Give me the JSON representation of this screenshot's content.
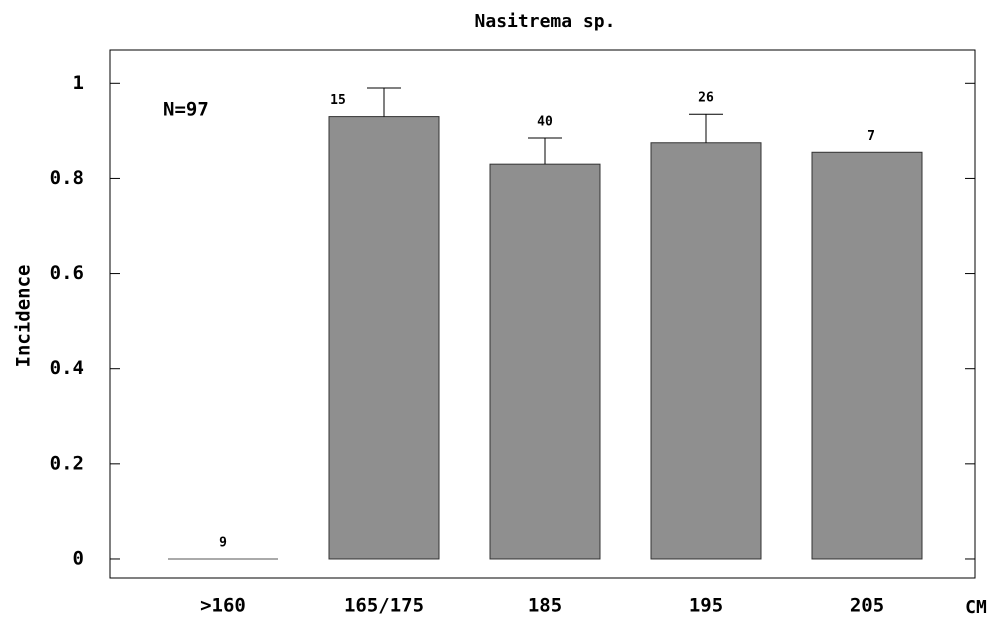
{
  "chart_data": {
    "type": "bar",
    "title": "Nasitrema sp.",
    "y_label": "Incidence",
    "x_label": "CM",
    "annotation": "N=97",
    "categories": [
      ">160",
      "165/175",
      "185",
      "195",
      "205"
    ],
    "values": [
      0,
      0.93,
      0.83,
      0.875,
      0.855
    ],
    "errors": [
      null,
      0.06,
      0.055,
      0.06,
      null
    ],
    "sample_sizes": [
      9,
      15,
      40,
      26,
      7
    ],
    "color": "#8f8f8f",
    "ylim": [
      -0.04,
      1.07
    ],
    "yticks": [
      0,
      0.2,
      0.4,
      0.6,
      0.8,
      1
    ],
    "grid": false
  }
}
